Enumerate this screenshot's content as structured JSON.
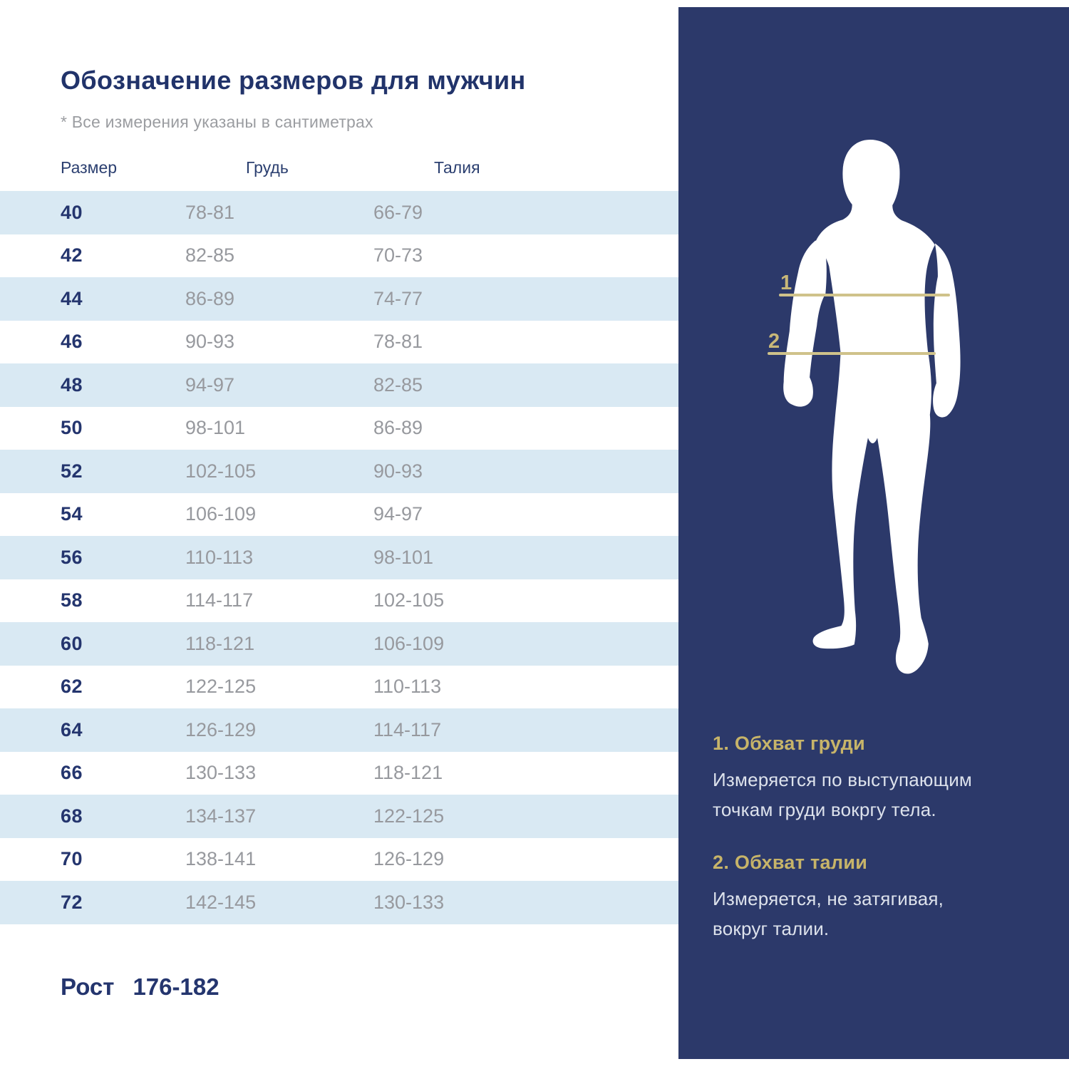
{
  "left": {
    "title": "Обозначение размеров для мужчин",
    "note": "* Все измерения указаны в сантиметрах",
    "table": {
      "headers": [
        "Размер",
        "Грудь",
        "Талия"
      ],
      "rows": [
        [
          "40",
          "78-81",
          "66-79"
        ],
        [
          "42",
          "82-85",
          "70-73"
        ],
        [
          "44",
          "86-89",
          "74-77"
        ],
        [
          "46",
          "90-93",
          "78-81"
        ],
        [
          "48",
          "94-97",
          "82-85"
        ],
        [
          "50",
          "98-101",
          "86-89"
        ],
        [
          "52",
          "102-105",
          "90-93"
        ],
        [
          "54",
          "106-109",
          "94-97"
        ],
        [
          "56",
          "110-113",
          "98-101"
        ],
        [
          "58",
          "114-117",
          "102-105"
        ],
        [
          "60",
          "118-121",
          "106-109"
        ],
        [
          "62",
          "122-125",
          "110-113"
        ],
        [
          "64",
          "126-129",
          "114-117"
        ],
        [
          "66",
          "130-133",
          "118-121"
        ],
        [
          "68",
          "134-137",
          "122-125"
        ],
        [
          "70",
          "138-141",
          "126-129"
        ],
        [
          "72",
          "142-145",
          "130-133"
        ]
      ]
    },
    "height_label": "Рост",
    "height_value": "176-182"
  },
  "panel": {
    "marker1": "1",
    "marker2": "2",
    "sections": [
      {
        "heading": "1. Обхват груди",
        "body": "Измеряется по  выступающим\nточкам груди вокргу тела."
      },
      {
        "heading": "2. Обхват талии",
        "body": "Измеряется, не затягивая,\nвокруг талии."
      }
    ]
  },
  "colors": {
    "row_stripe": "#d9e9f3",
    "navy_text": "#24356e",
    "gray_text": "#97999e",
    "panel_bg": "#2c396a",
    "gold_heading": "#c7b469",
    "gold_line": "#cfc28a",
    "panel_body_text": "#dde2ec"
  }
}
